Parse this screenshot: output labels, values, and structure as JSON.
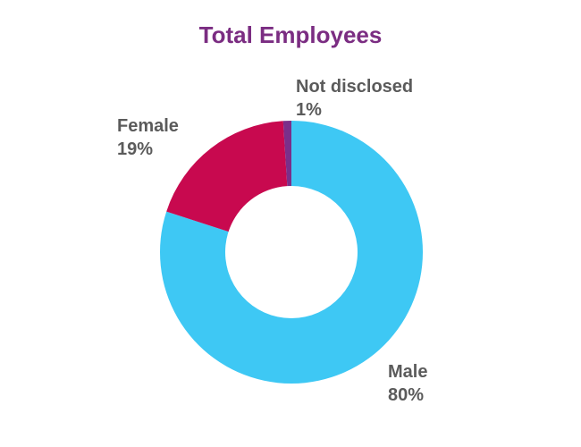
{
  "chart_data": {
    "type": "pie",
    "variant": "donut",
    "title": "Total Employees",
    "slices": [
      {
        "name": "Male",
        "value": 80,
        "label": "80%",
        "color": "#3ec8f4"
      },
      {
        "name": "Female",
        "value": 19,
        "label": "19%",
        "color": "#c8094f"
      },
      {
        "name": "Not disclosed",
        "value": 1,
        "label": "1%",
        "color": "#7a2f8a"
      }
    ],
    "legend": "none"
  },
  "colors": {
    "title": "#7b2d82",
    "labels": "#5b5b5b"
  }
}
